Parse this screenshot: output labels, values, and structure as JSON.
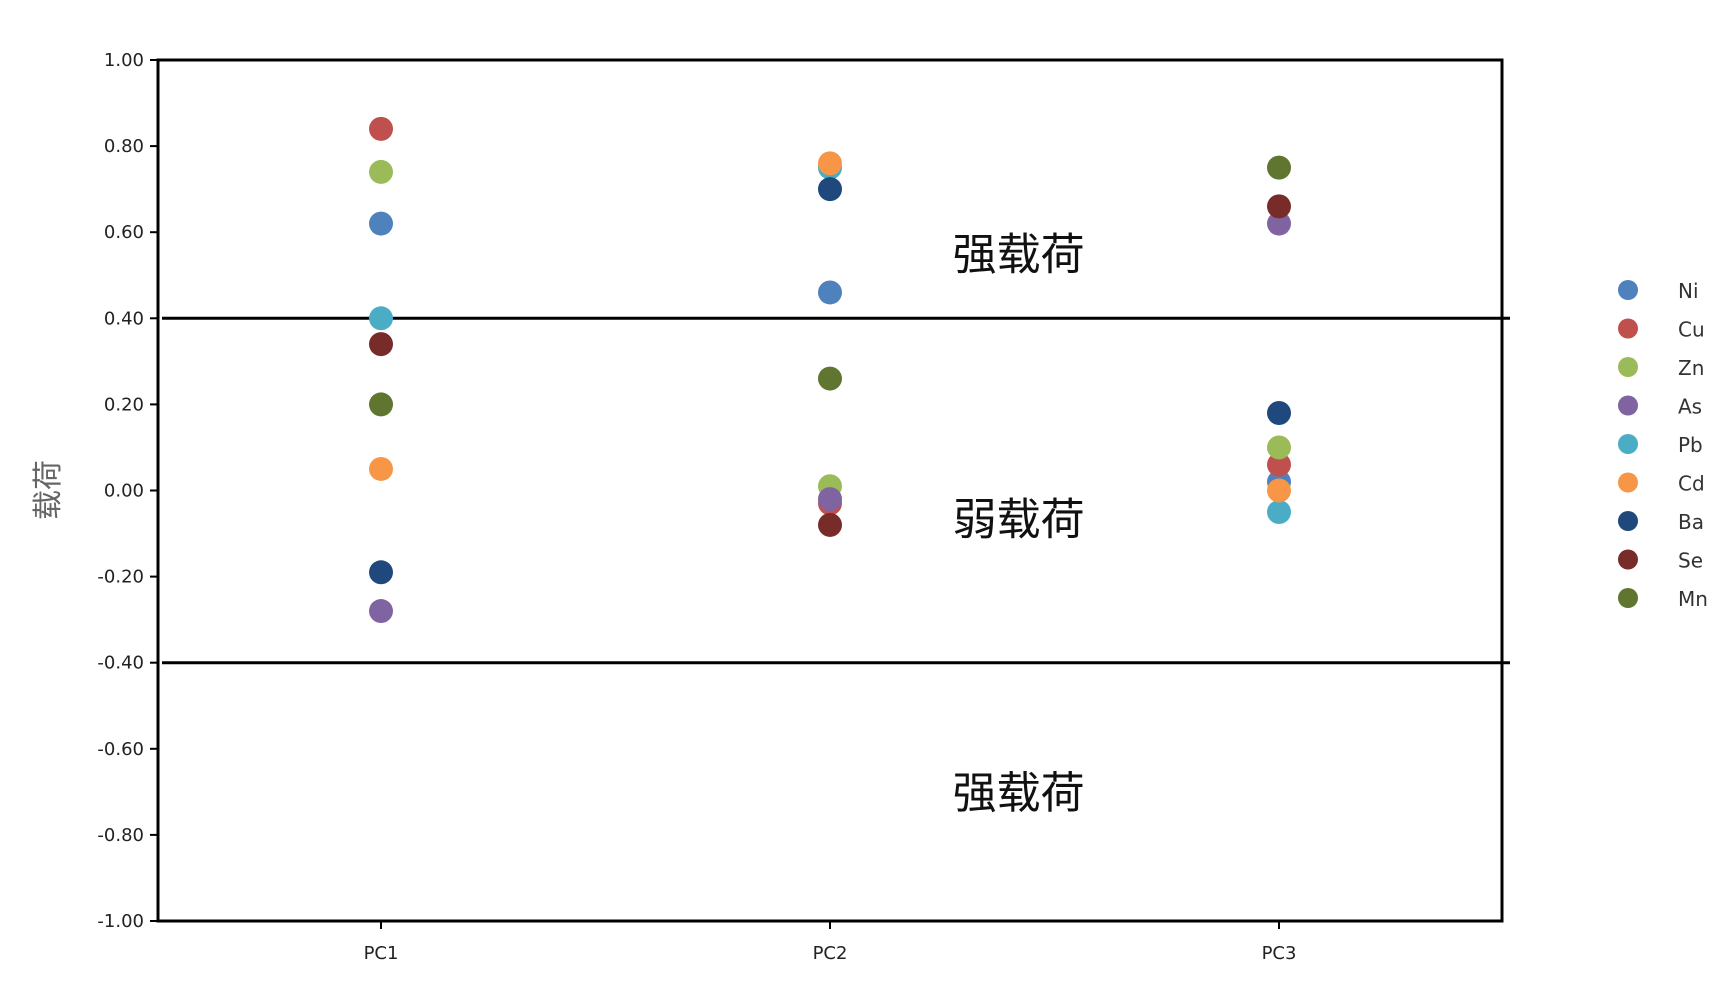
{
  "chart_data": {
    "type": "scatter",
    "title": "",
    "xlabel": "",
    "ylabel": "载荷",
    "ylim": [
      -1.0,
      1.0
    ],
    "yticks": [
      "1.00",
      "0.80",
      "0.60",
      "0.40",
      "0.20",
      "0.00",
      "-0.20",
      "-0.40",
      "-0.60",
      "-0.80",
      "-1.00"
    ],
    "categories": [
      "PC1",
      "PC2",
      "PC3"
    ],
    "legend_position": "right",
    "reference_lines": [
      0.4,
      -0.4
    ],
    "annotations": [
      {
        "text": "强载荷",
        "category_pos": 1.42,
        "y": 0.55
      },
      {
        "text": "弱载荷",
        "category_pos": 1.42,
        "y": -0.065
      },
      {
        "text": "强载荷",
        "category_pos": 1.42,
        "y": -0.7
      }
    ],
    "series": [
      {
        "name": "Ni",
        "color": "#4F81BD",
        "values": [
          0.62,
          0.46,
          0.02
        ]
      },
      {
        "name": "Cu",
        "color": "#C0504D",
        "values": [
          0.84,
          -0.03,
          0.06
        ]
      },
      {
        "name": "Zn",
        "color": "#9BBB59",
        "values": [
          0.74,
          0.01,
          0.1
        ]
      },
      {
        "name": "As",
        "color": "#8064A2",
        "values": [
          -0.28,
          -0.02,
          0.62
        ]
      },
      {
        "name": "Pb",
        "color": "#4BACC6",
        "values": [
          0.4,
          0.75,
          -0.05
        ]
      },
      {
        "name": "Cd",
        "color": "#F79646",
        "values": [
          0.05,
          0.76,
          0.0
        ]
      },
      {
        "name": "Ba",
        "color": "#1F497D",
        "values": [
          -0.19,
          0.7,
          0.18
        ]
      },
      {
        "name": "Se",
        "color": "#772C2A",
        "values": [
          0.34,
          -0.08,
          0.66
        ]
      },
      {
        "name": "Mn",
        "color": "#5F7530",
        "values": [
          0.2,
          0.26,
          0.75
        ]
      }
    ]
  }
}
